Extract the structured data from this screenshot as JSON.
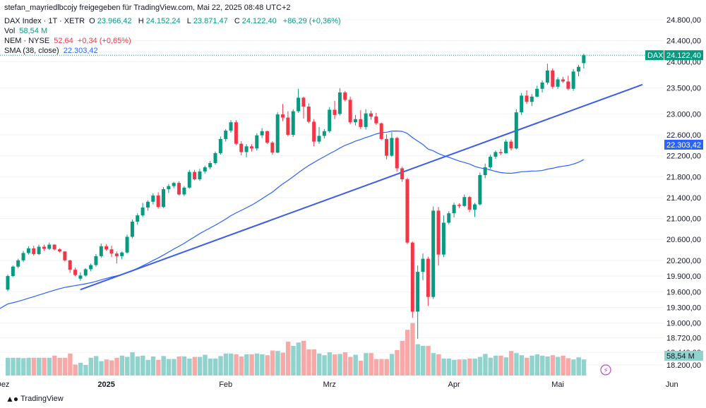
{
  "header": {
    "published": "stefan_mayriedlbcojy freigegeben für TradingView.com, Mai 22, 2025 08:48 UTC+2",
    "symbol": "DAX Index · 1T · XETR",
    "o_label": "O",
    "o_value": "23.966,42",
    "h_label": "H",
    "h_value": "24.152,24",
    "l_label": "L",
    "l_value": "23.871,47",
    "c_label": "C",
    "c_value": "24.122,40",
    "change": "+86,29 (+0,36%)",
    "vol_label": "Vol",
    "vol_value": "58,54 M",
    "nem_label": "NEM · NYSE",
    "nem_value": "52,64",
    "nem_change": "+0,34 (+0,65%)",
    "sma_label": "SMA (38, close)",
    "sma_value": "22.303,42"
  },
  "footer": {
    "brand": "TradingView"
  },
  "colors": {
    "up": "#089981",
    "down": "#f23645",
    "vol_up": "#92d2cc",
    "vol_down": "#f7a9a7",
    "sma": "#2962ff",
    "trend": "#3d5ce8"
  },
  "chart_data": {
    "type": "candlestick",
    "price_axis": {
      "ticks": [
        18200,
        18440,
        18720,
        19000,
        19300,
        19600,
        19900,
        20200,
        20600,
        21000,
        21400,
        21800,
        22200,
        22600,
        23000,
        23500,
        24000,
        24400,
        24800
      ],
      "tick_labels": [
        "18.200,00",
        "18.440,00",
        "18.720,00",
        "19.000,00",
        "19.300,00",
        "19.600,00",
        "19.900,00",
        "20.200,00",
        "20.600,00",
        "21.000,00",
        "21.400,00",
        "21.800,00",
        "22.200,00",
        "22.600,00",
        "23.000,00",
        "23.500,00",
        "24.000,00",
        "24.400,00",
        "24.800,00"
      ],
      "ylim": [
        18080,
        24950
      ]
    },
    "time_axis": {
      "labels": [
        "Dez",
        "2025",
        "Feb",
        "Mrz",
        "Apr",
        "Mai",
        "Jun"
      ],
      "label_index": [
        -1,
        19,
        42,
        62,
        86,
        106,
        128
      ]
    },
    "last_price": {
      "symbol": "DAX",
      "value": "24.122,40",
      "price": 24122.4
    },
    "sma_label": {
      "value": "22.303,42",
      "price": 22303.42
    },
    "vol_label": {
      "value": "58,54 M"
    },
    "candles": [
      [
        19640,
        19930,
        19610,
        19900
      ],
      [
        19900,
        20100,
        19880,
        20080
      ],
      [
        20080,
        20230,
        20050,
        20200
      ],
      [
        20200,
        20380,
        20170,
        20340
      ],
      [
        20340,
        20470,
        20310,
        20430
      ],
      [
        20430,
        20480,
        20290,
        20320
      ],
      [
        20320,
        20500,
        20300,
        20460
      ],
      [
        20460,
        20500,
        20380,
        20420
      ],
      [
        20420,
        20540,
        20400,
        20500
      ],
      [
        20500,
        20510,
        20390,
        20410
      ],
      [
        20410,
        20430,
        20350,
        20370
      ],
      [
        20370,
        20370,
        20180,
        20200
      ],
      [
        20200,
        20210,
        19960,
        20020
      ],
      [
        20020,
        20060,
        19900,
        19920
      ],
      [
        19850,
        19970,
        19810,
        19910
      ],
      [
        19910,
        20050,
        19890,
        20030
      ],
      [
        20030,
        20140,
        19990,
        20110
      ],
      [
        20110,
        20320,
        20080,
        20280
      ],
      [
        20280,
        20520,
        20250,
        20470
      ],
      [
        20470,
        20510,
        20380,
        20410
      ],
      [
        20410,
        20480,
        20260,
        20330
      ],
      [
        20330,
        20370,
        20140,
        20280
      ],
      [
        20280,
        20370,
        20220,
        20350
      ],
      [
        20350,
        20690,
        20330,
        20650
      ],
      [
        20650,
        20980,
        20620,
        20940
      ],
      [
        20940,
        21100,
        20880,
        21060
      ],
      [
        21060,
        21300,
        21030,
        21210
      ],
      [
        21210,
        21350,
        21150,
        21320
      ],
      [
        21320,
        21480,
        21270,
        21440
      ],
      [
        21440,
        21500,
        21190,
        21220
      ],
      [
        21220,
        21600,
        21200,
        21560
      ],
      [
        21560,
        21660,
        21490,
        21620
      ],
      [
        21620,
        21700,
        21580,
        21680
      ],
      [
        21680,
        21710,
        21440,
        21460
      ],
      [
        21460,
        21620,
        21430,
        21590
      ],
      [
        21590,
        21930,
        21570,
        21890
      ],
      [
        21890,
        21930,
        21730,
        21750
      ],
      [
        21750,
        21950,
        21720,
        21900
      ],
      [
        21900,
        22010,
        21860,
        21980
      ],
      [
        21980,
        22100,
        21940,
        22060
      ],
      [
        22060,
        22280,
        22030,
        22250
      ],
      [
        22250,
        22570,
        22220,
        22520
      ],
      [
        22520,
        22710,
        22470,
        22680
      ],
      [
        22680,
        22880,
        22640,
        22840
      ],
      [
        22840,
        22880,
        22400,
        22430
      ],
      [
        22430,
        22480,
        22210,
        22270
      ],
      [
        22270,
        22420,
        22170,
        22380
      ],
      [
        22380,
        22420,
        22280,
        22340
      ],
      [
        22340,
        22630,
        22300,
        22590
      ],
      [
        22590,
        22730,
        22540,
        22670
      ],
      [
        22670,
        22680,
        22430,
        22450
      ],
      [
        22450,
        22480,
        22220,
        22260
      ],
      [
        22260,
        23030,
        22250,
        22990
      ],
      [
        22990,
        23190,
        22860,
        22930
      ],
      [
        22930,
        23050,
        22570,
        22600
      ],
      [
        22600,
        23090,
        22560,
        23050
      ],
      [
        23050,
        23480,
        23020,
        23310
      ],
      [
        23310,
        23330,
        22910,
        23140
      ],
      [
        23140,
        23200,
        22820,
        22850
      ],
      [
        22850,
        22900,
        22380,
        22470
      ],
      [
        22470,
        22750,
        22430,
        22580
      ],
      [
        22580,
        22710,
        22530,
        22670
      ],
      [
        22670,
        23130,
        22640,
        23080
      ],
      [
        23080,
        23250,
        22900,
        22980
      ],
      [
        23000,
        23490,
        22970,
        23410
      ],
      [
        23410,
        23440,
        23240,
        23270
      ],
      [
        23270,
        23330,
        22800,
        22840
      ],
      [
        22840,
        22980,
        22780,
        22900
      ],
      [
        22900,
        23070,
        22710,
        22750
      ],
      [
        22750,
        23090,
        22700,
        23010
      ],
      [
        23010,
        23060,
        22890,
        22950
      ],
      [
        22950,
        23020,
        22790,
        22820
      ],
      [
        22820,
        22830,
        22500,
        22520
      ],
      [
        22520,
        22610,
        22130,
        22200
      ],
      [
        22200,
        22650,
        22180,
        22540
      ],
      [
        22540,
        22560,
        21900,
        21960
      ],
      [
        21960,
        21990,
        21700,
        21750
      ],
      [
        21750,
        21780,
        20510,
        20540
      ],
      [
        20540,
        20560,
        19100,
        19220
      ],
      [
        19220,
        20100,
        18700,
        19980
      ],
      [
        19980,
        20330,
        19820,
        20230
      ],
      [
        20230,
        20270,
        19330,
        19500
      ],
      [
        19500,
        21230,
        19460,
        21150
      ],
      [
        21150,
        21220,
        20100,
        20310
      ],
      [
        20310,
        21060,
        20260,
        20920
      ],
      [
        20920,
        21140,
        20890,
        21100
      ],
      [
        21100,
        21300,
        21020,
        21260
      ],
      [
        21260,
        21290,
        21200,
        21240
      ],
      [
        21240,
        21460,
        21220,
        21410
      ],
      [
        21410,
        21430,
        21120,
        21170
      ],
      [
        21170,
        21300,
        21030,
        21270
      ],
      [
        21270,
        21880,
        21250,
        21830
      ],
      [
        21830,
        22050,
        21770,
        21980
      ],
      [
        21980,
        22220,
        21950,
        22180
      ],
      [
        22180,
        22300,
        22140,
        22270
      ],
      [
        22270,
        22330,
        22210,
        22250
      ],
      [
        22250,
        22510,
        22240,
        22470
      ],
      [
        22470,
        22510,
        22300,
        22340
      ],
      [
        22340,
        23090,
        22320,
        23030
      ],
      [
        23030,
        23400,
        22980,
        23350
      ],
      [
        23350,
        23450,
        23190,
        23230
      ],
      [
        23230,
        23380,
        23150,
        23330
      ],
      [
        23330,
        23540,
        23320,
        23480
      ],
      [
        23480,
        23640,
        23410,
        23600
      ],
      [
        23600,
        23960,
        23560,
        23830
      ],
      [
        23830,
        23870,
        23480,
        23520
      ],
      [
        23520,
        23700,
        23480,
        23660
      ],
      [
        23660,
        23710,
        23590,
        23620
      ],
      [
        23620,
        23730,
        23450,
        23480
      ],
      [
        23480,
        23860,
        23440,
        23810
      ],
      [
        23810,
        23940,
        23720,
        23900
      ],
      [
        23970,
        24150,
        23870,
        24120
      ]
    ],
    "volume": [
      42,
      42,
      42,
      41,
      42,
      42,
      42,
      42,
      42,
      47,
      42,
      42,
      52,
      26,
      30,
      25,
      42,
      46,
      34,
      38,
      36,
      42,
      47,
      44,
      55,
      45,
      47,
      37,
      45,
      37,
      46,
      39,
      39,
      45,
      45,
      40,
      44,
      44,
      49,
      40,
      40,
      46,
      52,
      52,
      50,
      45,
      50,
      50,
      52,
      50,
      48,
      59,
      58,
      54,
      80,
      70,
      78,
      82,
      62,
      62,
      52,
      48,
      55,
      50,
      51,
      55,
      44,
      49,
      35,
      53,
      53,
      39,
      39,
      39,
      51,
      60,
      82,
      108,
      124,
      74,
      70,
      70,
      53,
      50,
      40,
      40,
      37,
      38,
      38,
      40,
      40,
      44,
      51,
      42,
      47,
      47,
      43,
      58,
      53,
      48,
      42,
      47,
      50,
      47,
      45,
      48,
      44,
      47,
      41,
      38,
      43,
      38
    ]
  }
}
